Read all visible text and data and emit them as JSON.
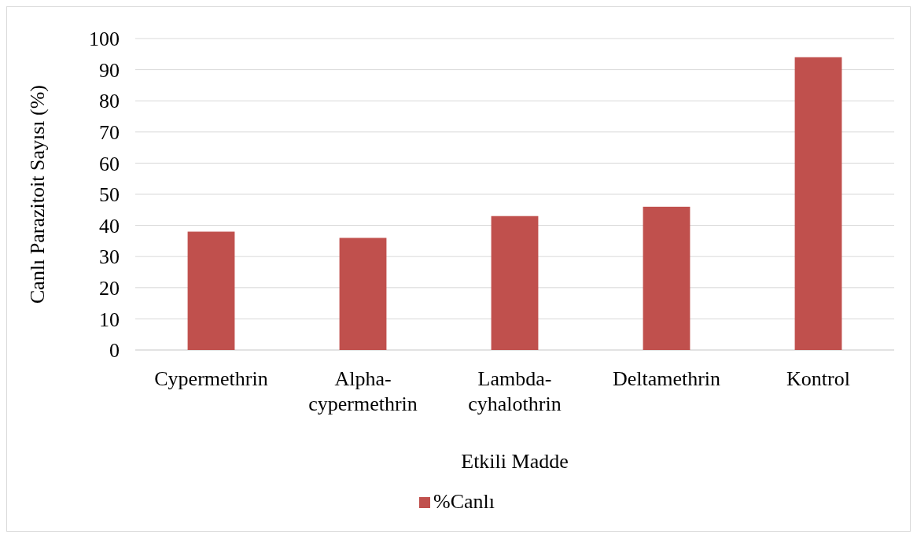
{
  "chart_data": {
    "type": "bar",
    "xlabel": "Etkili Madde",
    "ylabel": "Canlı Parazitoit Sayısı (%)",
    "categories": [
      "Cypermethrin",
      "Alpha-cypermethrin",
      "Lambda-cyhalothrin",
      "Deltamethrin",
      "Kontrol"
    ],
    "series": [
      {
        "name": "%Canlı",
        "color": "#c0504d",
        "values": [
          38,
          36,
          43,
          46,
          94
        ]
      }
    ],
    "ylim": [
      0,
      100
    ],
    "yticks": [
      0,
      10,
      20,
      30,
      40,
      50,
      60,
      70,
      80,
      90,
      100
    ],
    "grid": "y",
    "legend": "bottom"
  }
}
